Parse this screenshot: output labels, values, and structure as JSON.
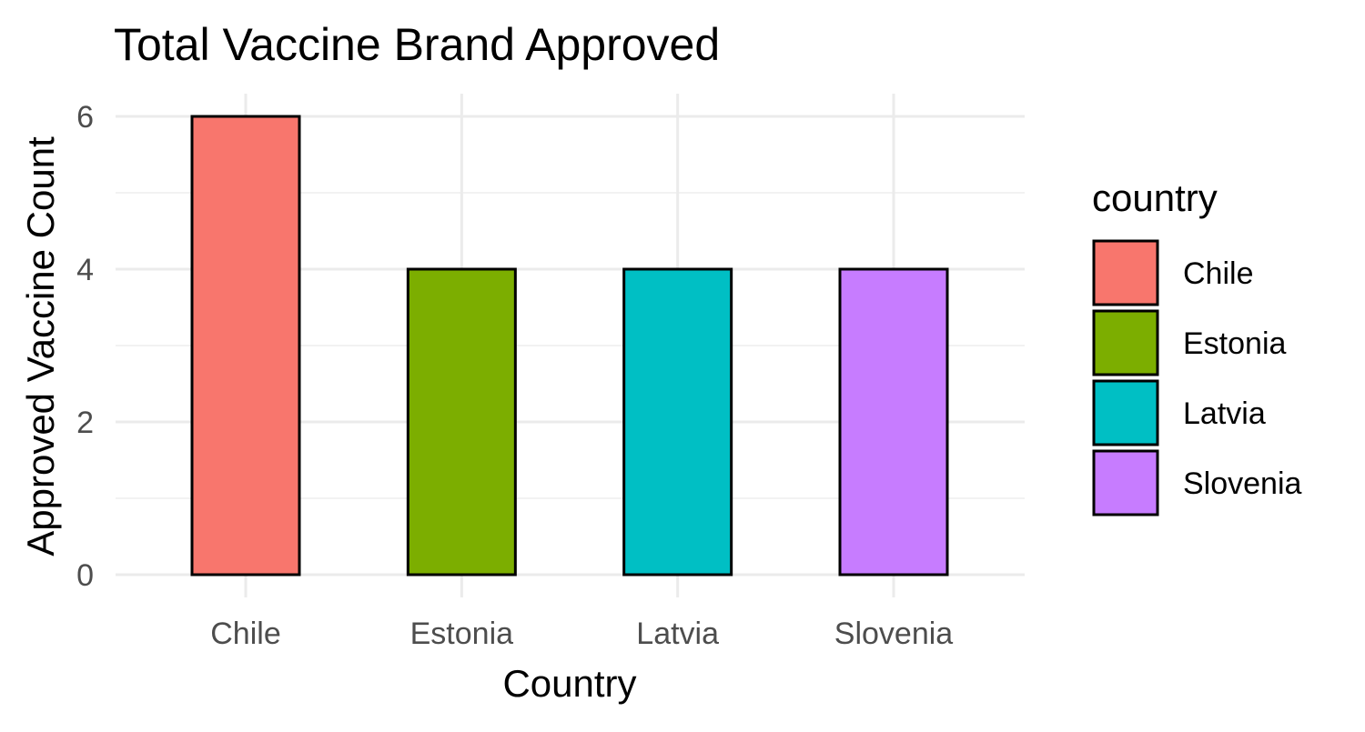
{
  "chart_data": {
    "type": "bar",
    "title": "Total Vaccine Brand Approved",
    "xlabel": "Country",
    "ylabel": "Approved Vaccine Count",
    "categories": [
      "Chile",
      "Estonia",
      "Latvia",
      "Slovenia"
    ],
    "values": [
      6,
      4,
      4,
      4
    ],
    "ylim": [
      0,
      6.3
    ],
    "y_ticks": [
      0,
      2,
      4,
      6
    ],
    "grid": true,
    "legend": {
      "title": "country",
      "placement": "right",
      "entries": [
        "Chile",
        "Estonia",
        "Latvia",
        "Slovenia"
      ]
    },
    "colors": [
      "#F8766D",
      "#7CAE00",
      "#00BFC4",
      "#C77CFF"
    ],
    "bar_outline_color": "#000000"
  }
}
